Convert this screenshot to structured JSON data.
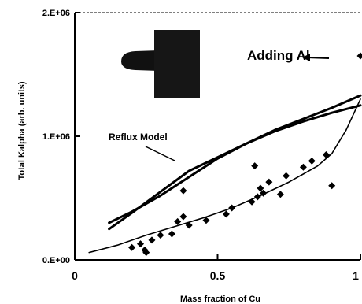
{
  "chart_data": {
    "type": "scatter",
    "title": "",
    "xlabel": "Mass fraction of Cu",
    "ylabel": "Total Kalpha (arb. units)",
    "xlim": [
      0,
      1
    ],
    "ylim": [
      0,
      2000000
    ],
    "x_tick_labels": [
      "0",
      "0.5",
      "1"
    ],
    "x_ticks": [
      0,
      0.5,
      1
    ],
    "y_tick_labels": [
      "0.E+00",
      "1.E+06",
      "2.E+06"
    ],
    "y_ticks": [
      0,
      1000000,
      2000000
    ],
    "grid": false,
    "annotations": [
      {
        "text": "Adding Al"
      },
      {
        "text": "Reflux Model"
      }
    ],
    "inset": {
      "description": "specimen sketch"
    },
    "series": [
      {
        "kind": "scatter",
        "marker": "diamond",
        "points": [
          [
            0.2,
            100000
          ],
          [
            0.23,
            130000
          ],
          [
            0.245,
            80000
          ],
          [
            0.25,
            60000
          ],
          [
            0.27,
            160000
          ],
          [
            0.3,
            200000
          ],
          [
            0.34,
            210000
          ],
          [
            0.36,
            310000
          ],
          [
            0.38,
            350000
          ],
          [
            0.4,
            280000
          ],
          [
            0.46,
            320000
          ],
          [
            0.53,
            370000
          ],
          [
            0.55,
            420000
          ],
          [
            0.62,
            470000
          ],
          [
            0.64,
            510000
          ],
          [
            0.65,
            580000
          ],
          [
            0.66,
            540000
          ],
          [
            0.68,
            630000
          ],
          [
            0.72,
            530000
          ],
          [
            0.74,
            680000
          ],
          [
            0.8,
            750000
          ],
          [
            0.83,
            800000
          ],
          [
            0.88,
            850000
          ],
          [
            0.9,
            600000
          ],
          [
            0.38,
            560000
          ],
          [
            0.63,
            760000
          ],
          [
            1.0,
            1650000
          ]
        ]
      },
      {
        "kind": "fit",
        "style": "thin",
        "points": [
          [
            0.05,
            60000
          ],
          [
            0.15,
            120000
          ],
          [
            0.25,
            200000
          ],
          [
            0.35,
            270000
          ],
          [
            0.45,
            340000
          ],
          [
            0.55,
            420000
          ],
          [
            0.65,
            520000
          ],
          [
            0.75,
            630000
          ],
          [
            0.85,
            760000
          ],
          [
            0.9,
            860000
          ],
          [
            0.95,
            1050000
          ],
          [
            1.0,
            1300000
          ]
        ]
      },
      {
        "kind": "model",
        "style": "thick",
        "points": [
          [
            0.12,
            300000
          ],
          [
            0.2,
            390000
          ],
          [
            0.3,
            520000
          ],
          [
            0.4,
            670000
          ],
          [
            0.5,
            820000
          ],
          [
            0.6,
            940000
          ],
          [
            0.7,
            1050000
          ],
          [
            0.8,
            1140000
          ],
          [
            0.9,
            1230000
          ],
          [
            1.0,
            1330000
          ]
        ]
      },
      {
        "kind": "model",
        "style": "thick",
        "points": [
          [
            0.12,
            250000
          ],
          [
            0.2,
            380000
          ],
          [
            0.3,
            550000
          ],
          [
            0.4,
            720000
          ],
          [
            0.5,
            830000
          ],
          [
            0.6,
            940000
          ],
          [
            0.7,
            1040000
          ],
          [
            0.8,
            1120000
          ],
          [
            0.9,
            1190000
          ],
          [
            1.0,
            1250000
          ]
        ]
      }
    ]
  }
}
